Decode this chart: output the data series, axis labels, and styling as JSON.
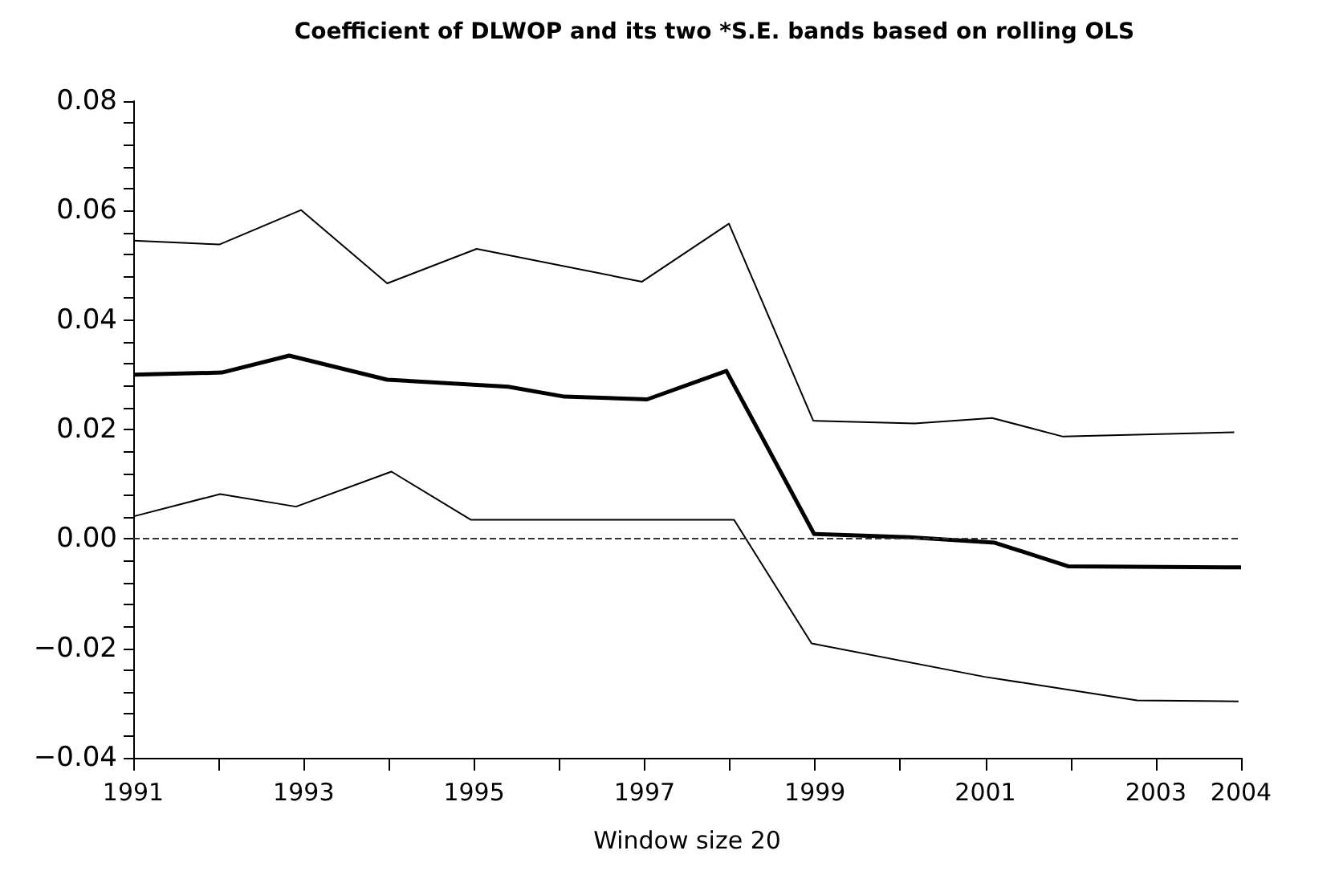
{
  "chart_data": {
    "type": "line",
    "title": "Coefficient of DLWOP and its two *S.E. bands based on rolling OLS",
    "xlabel": "Window size 20",
    "xlim": [
      1991,
      2004
    ],
    "xticks": [
      1991,
      {
        "value": 1992,
        "label": null
      },
      1993,
      {
        "value": 1994,
        "label": null
      },
      1995,
      {
        "value": 1996,
        "label": null
      },
      1997,
      {
        "value": 1998,
        "label": null
      },
      1999,
      {
        "value": 2000,
        "label": null
      },
      2001,
      {
        "value": 2002,
        "label": null
      },
      2003,
      2004
    ],
    "ylim": [
      -0.04,
      0.08
    ],
    "yticks": [
      {
        "value": -0.04,
        "label": "−0.04"
      },
      {
        "value": -0.036,
        "label": null
      },
      {
        "value": -0.032,
        "label": null
      },
      {
        "value": -0.028,
        "label": null
      },
      {
        "value": -0.024,
        "label": null
      },
      {
        "value": -0.02,
        "label": "−0.02"
      },
      {
        "value": -0.016,
        "label": null
      },
      {
        "value": -0.012,
        "label": null
      },
      {
        "value": -0.008,
        "label": null
      },
      {
        "value": -0.004,
        "label": null
      },
      {
        "value": 0,
        "label": "0.00"
      },
      {
        "value": 0.004,
        "label": null
      },
      {
        "value": 0.008,
        "label": null
      },
      {
        "value": 0.012,
        "label": null
      },
      {
        "value": 0.016,
        "label": null
      },
      {
        "value": 0.02,
        "label": "0.02"
      },
      {
        "value": 0.024,
        "label": null
      },
      {
        "value": 0.028,
        "label": null
      },
      {
        "value": 0.032,
        "label": null
      },
      {
        "value": 0.036,
        "label": null
      },
      {
        "value": 0.04,
        "label": "0.04"
      },
      {
        "value": 0.044,
        "label": null
      },
      {
        "value": 0.048,
        "label": null
      },
      {
        "value": 0.052,
        "label": null
      },
      {
        "value": 0.056,
        "label": null
      },
      {
        "value": 0.06,
        "label": "0.06"
      },
      {
        "value": 0.064,
        "label": null
      },
      {
        "value": 0.068,
        "label": null
      },
      {
        "value": 0.072,
        "label": null
      },
      {
        "value": 0.076,
        "label": null
      },
      {
        "value": 0.08,
        "label": "0.08"
      }
    ],
    "grid": false,
    "marker": "none",
    "ref_lines": [
      {
        "axis": "y",
        "value": 0,
        "line_style": "dashed",
        "color": "#333333"
      }
    ],
    "series": [
      {
        "color": "#000000",
        "x": [
          1991,
          1992.01,
          1992.97,
          1993.98,
          1995.03,
          1996.97,
          1997.99,
          1998.98,
          2000.17,
          2001.08,
          2001.91,
          2003.92
        ],
        "values": [
          0.0545,
          0.0538,
          0.0601,
          0.0467,
          0.053,
          0.047,
          0.0576,
          0.0216,
          0.0211,
          0.0221,
          0.0187,
          0.0195
        ]
      },
      {
        "color": "#000000",
        "x": [
          1991,
          1992.04,
          1992.83,
          1993.98,
          1995.4,
          1996.06,
          1997.03,
          1997.96,
          1998.99,
          2000.11,
          2001.11,
          2001.97,
          2004
        ],
        "values": [
          0.03,
          0.0304,
          0.0335,
          0.0291,
          0.0278,
          0.026,
          0.0255,
          0.0307,
          0.0009,
          0.0003,
          -0.0007,
          -0.005,
          -0.0052
        ]
      },
      {
        "color": "#000000",
        "x": [
          1991,
          1992.02,
          1992.91,
          1994.03,
          1994.96,
          1998.05,
          1998.96,
          2000.99,
          2002.78,
          2003.97
        ],
        "values": [
          0.0041,
          0.0082,
          0.0059,
          0.0123,
          0.0035,
          0.0035,
          -0.0191,
          -0.0252,
          -0.0295,
          -0.0297
        ]
      }
    ]
  }
}
